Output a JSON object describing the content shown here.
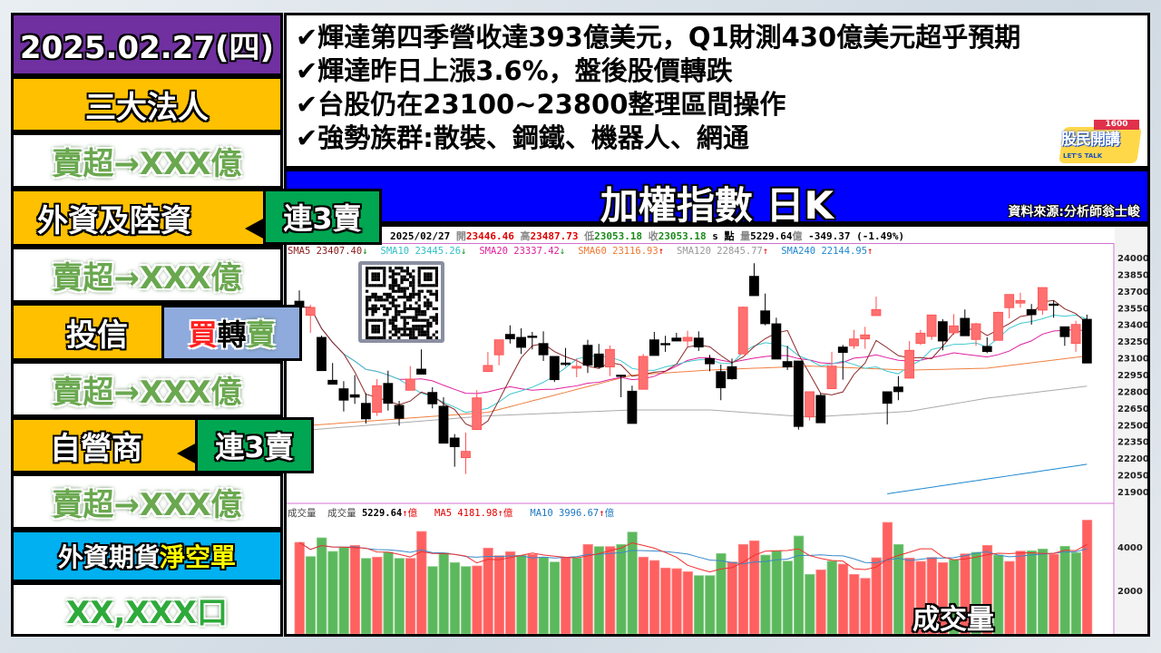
{
  "sidebar": {
    "date": "2025.02.27(四)",
    "institutions_title": "三大法人",
    "total": "賣超→XXX億",
    "foreign": {
      "label": "外資及陸資",
      "badge": "連3賣",
      "value": "賣超→XXX億"
    },
    "trust": {
      "label": "投信",
      "badge_buy": "買",
      "badge_turn": "轉",
      "badge_sell": "賣",
      "value": "賣超→XXX億"
    },
    "dealer": {
      "label": "自營商",
      "badge": "連3賣",
      "value": "賣超→XXX億"
    },
    "futures": {
      "label_a": "外資期貨",
      "label_b": "淨空單",
      "value": "XX,XXX口"
    }
  },
  "news": [
    "✔輝達第四季營收達393億美元，Q1財測430億美元超乎預期",
    "✔輝達昨日上漲3.6%，盤後股價轉跌",
    "✔台股仍在23100~23800整理區間操作",
    "✔強勢族群:散裝、鋼鐵、機器人、網通"
  ],
  "logo": {
    "text": "股民開講",
    "num": "1600",
    "sub": "LET'S TALK"
  },
  "title": {
    "main": "加權指數 日K",
    "source": "資料來源:分析師翁士峻"
  },
  "colors": {
    "purple": "#7030a0",
    "gold": "#ffc000",
    "green_badge": "#00a651",
    "blue_bar": "#0000ff",
    "futures": "#00b0f0",
    "trust_badge": "#8faadc",
    "up": "#ff6666",
    "down": "#000000",
    "vol_up": "#ff6060",
    "vol_down": "#5cb85c"
  },
  "chart_header": {
    "date": "2025/02/27",
    "open_label": "開",
    "open": "23446.46",
    "high_label": "高",
    "high": "23487.73",
    "low_label": "低",
    "low": "23053.18",
    "close_label": "收",
    "close": "23053.18",
    "unit": "s 點",
    "vol_label": "量",
    "vol": "5229.64",
    "vol_unit": "億",
    "change": "-349.37 (-1.49%)"
  },
  "ma_labels": [
    {
      "text": "SMA5 23407.40",
      "arrow": "↓",
      "color": "#8b1a1a",
      "arrow_color": "#1a8a1a"
    },
    {
      "text": "SMA10 23445.26",
      "arrow": "↓",
      "color": "#30c0c8",
      "arrow_color": "#1a8a1a"
    },
    {
      "text": "SMA20 23337.42",
      "arrow": "↓",
      "color": "#e0209a",
      "arrow_color": "#1a8a1a"
    },
    {
      "text": "SMA60 23116.93",
      "arrow": "↑",
      "color": "#f07830",
      "arrow_color": "#e00000"
    },
    {
      "text": "SMA120 22845.77",
      "arrow": "↑",
      "color": "#999999",
      "arrow_color": "#e00000"
    },
    {
      "text": "SMA240 22144.95",
      "arrow": "↑",
      "color": "#1e88d0",
      "arrow_color": "#e00000"
    }
  ],
  "vol_header": {
    "label": "成交量",
    "vol_label": "成交量",
    "vol": "5229.64",
    "ma5": "MA5 4181.98",
    "ma10": "MA10 3996.67",
    "arrow": "↑",
    "unit": "億"
  },
  "vol_caption": "成交量",
  "chart_data": {
    "type": "candlestick",
    "ylim": [
      21900,
      24000
    ],
    "yticks": [
      24000,
      23850,
      23700,
      23550,
      23400,
      23250,
      23100,
      22950,
      22800,
      22650,
      22500,
      22350,
      22200,
      22050,
      21900
    ],
    "ohlc": [
      [
        23609,
        23705,
        23555,
        23555
      ],
      [
        23482,
        23577,
        23325,
        23553
      ],
      [
        23284,
        23300,
        22985,
        22985
      ],
      [
        22899,
        23054,
        22863,
        22863
      ],
      [
        22823,
        22891,
        22619,
        22720
      ],
      [
        22769,
        22945,
        22687,
        22747
      ],
      [
        22692,
        22782,
        22511,
        22552
      ],
      [
        22611,
        22910,
        22579,
        22850
      ],
      [
        22871,
        22985,
        22627,
        22692
      ],
      [
        22674,
        22714,
        22492,
        22557
      ],
      [
        22809,
        23026,
        22809,
        22910
      ],
      [
        22999,
        23176,
        22953,
        22953
      ],
      [
        22790,
        22836,
        22647,
        22687
      ],
      [
        22666,
        22747,
        22334,
        22334
      ],
      [
        22381,
        22416,
        22123,
        22302
      ],
      [
        22204,
        22430,
        22058,
        22261
      ],
      [
        22456,
        22810,
        22456,
        22741
      ],
      [
        22977,
        23154,
        22977,
        23032
      ],
      [
        23127,
        23262,
        23034,
        23262
      ],
      [
        23311,
        23392,
        23229,
        23270
      ],
      [
        23284,
        23365,
        23135,
        23194
      ],
      [
        23295,
        23333,
        23176,
        23284
      ],
      [
        23229,
        23338,
        23072,
        23127
      ],
      [
        23113,
        23113,
        22883,
        22904
      ],
      [
        23054,
        23189,
        23026,
        23040
      ],
      [
        23007,
        23094,
        22926,
        23024
      ],
      [
        23213,
        23262,
        22964,
        23034
      ],
      [
        23135,
        23225,
        23007,
        23018
      ],
      [
        23018,
        23211,
        22936,
        23176
      ],
      [
        22945,
        22945,
        22747,
        22936
      ],
      [
        22801,
        22850,
        22511,
        22511
      ],
      [
        22818,
        23135,
        22818,
        23113
      ],
      [
        23262,
        23333,
        23121,
        23121
      ],
      [
        23229,
        23298,
        23154,
        23220
      ],
      [
        23278,
        23325,
        23251,
        23251
      ],
      [
        23251,
        23343,
        23203,
        23284
      ],
      [
        23278,
        23338,
        23162,
        23197
      ],
      [
        23094,
        23127,
        22980,
        23046
      ],
      [
        22977,
        23040,
        22720,
        22831
      ],
      [
        23021,
        23094,
        22904,
        22912
      ],
      [
        23135,
        23560,
        23135,
        23555
      ],
      [
        23832,
        23949,
        23658,
        23658
      ],
      [
        23522,
        23677,
        23392,
        23406
      ],
      [
        23406,
        23460,
        23089,
        23089
      ],
      [
        23067,
        23208,
        22991,
        23018
      ],
      [
        23072,
        23072,
        22456,
        22484
      ],
      [
        22570,
        22796,
        22538,
        22796
      ],
      [
        22763,
        22782,
        22517,
        22517
      ],
      [
        22823,
        23154,
        22823,
        23026
      ],
      [
        23197,
        23216,
        22904,
        23148
      ],
      [
        23208,
        23351,
        23181,
        23270
      ],
      [
        23270,
        23379,
        23181,
        23306
      ],
      [
        23479,
        23650,
        23479,
        23534
      ],
      [
        22796,
        22796,
        22503,
        22692
      ],
      [
        22839,
        22936,
        22720,
        22796
      ],
      [
        22918,
        23251,
        22918,
        23168
      ],
      [
        23229,
        23351,
        23216,
        23322
      ],
      [
        23292,
        23485,
        23262,
        23485
      ],
      [
        23425,
        23447,
        23168,
        23251
      ],
      [
        23325,
        23493,
        23306,
        23387
      ],
      [
        23455,
        23534,
        23298,
        23298
      ],
      [
        23265,
        23414,
        23208,
        23406
      ],
      [
        23203,
        23284,
        23143,
        23156
      ],
      [
        23257,
        23515,
        23257,
        23509
      ],
      [
        23550,
        23669,
        23455,
        23669
      ],
      [
        23591,
        23685,
        23550,
        23615
      ],
      [
        23534,
        23583,
        23398,
        23487
      ],
      [
        23528,
        23731,
        23487,
        23731
      ],
      [
        23583,
        23615,
        23460,
        23575
      ],
      [
        23379,
        23379,
        23208,
        23290
      ],
      [
        23229,
        23433,
        23154,
        23400
      ],
      [
        23446.46,
        23487.73,
        23053.18,
        23053.18
      ]
    ],
    "long_ma": {
      "SMA60": [
        [
          0,
          22487
        ],
        [
          17,
          22611
        ],
        [
          30,
          22945
        ],
        [
          37,
          22991
        ],
        [
          46,
          23026
        ],
        [
          55,
          22990
        ],
        [
          62,
          23007
        ],
        [
          71,
          23117
        ]
      ],
      "SMA120": [
        [
          0,
          22446
        ],
        [
          17,
          22580
        ],
        [
          30,
          22633
        ],
        [
          37,
          22633
        ],
        [
          46,
          22568
        ],
        [
          55,
          22620
        ],
        [
          62,
          22738
        ],
        [
          71,
          22846
        ]
      ],
      "SMA240": [
        [
          53,
          21880
        ],
        [
          71,
          22145
        ]
      ]
    },
    "volume": {
      "ylim": [
        0,
        5400
      ],
      "yticks": [
        4000,
        2000
      ],
      "values": [
        4208,
        3556,
        4417,
        3792,
        3972,
        4069,
        3472,
        3528,
        3750,
        3472,
        3472,
        4708,
        3097,
        3722,
        3278,
        3097,
        3125,
        3944,
        3597,
        3778,
        3611,
        3653,
        3514,
        3306,
        3514,
        3486,
        4111,
        4014,
        4014,
        4111,
        4681,
        3528,
        3375,
        3028,
        3000,
        2861,
        2681,
        2681,
        3694,
        3306,
        4111,
        4278,
        3625,
        3806,
        3347,
        4500,
        2736,
        2944,
        3347,
        3208,
        2736,
        2556,
        3500,
        5125,
        4111,
        3486,
        3333,
        3514,
        3278,
        3417,
        3681,
        3750,
        4069,
        3625,
        3333,
        3806,
        3819,
        3903,
        3667,
        4028,
        3736,
        5229.64
      ],
      "colors": "rgggg rgrggrrgggg rrrrgrggrgrgrggrrrrrgggrrrgggg grgrrrrrg rrrrgrgrgrrggrggrg"
    }
  }
}
